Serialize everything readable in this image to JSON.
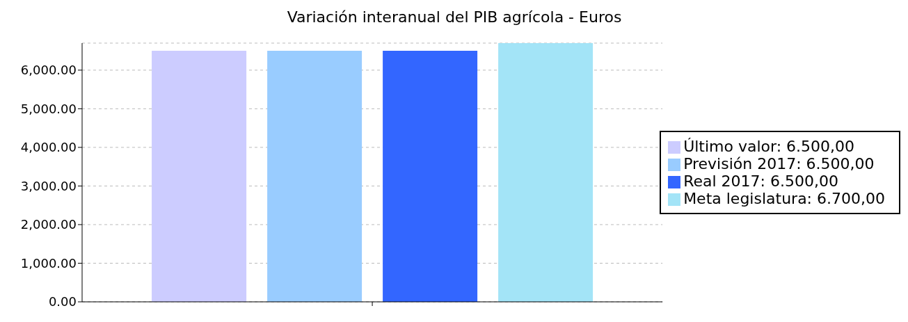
{
  "chart_data": {
    "type": "bar",
    "title": "Variación interanual del PIB agrícola - Euros",
    "categories": [
      null
    ],
    "series": [
      {
        "name": "Último valor: 6.500,00",
        "color": "#ccccff",
        "values": [
          6500
        ]
      },
      {
        "name": "Previsión 2017: 6.500,00",
        "color": "#99ccff",
        "values": [
          6500
        ]
      },
      {
        "name": "Real 2017: 6.500,00",
        "color": "#3366ff",
        "values": [
          6500
        ]
      },
      {
        "name": "Meta legislatura: 6.700,00",
        "color": "#a3e4f7",
        "values": [
          6700
        ]
      }
    ],
    "ylim": [
      0,
      6700
    ],
    "yticks": [
      {
        "value": 0,
        "label": "0.00"
      },
      {
        "value": 1000,
        "label": "1,000.00"
      },
      {
        "value": 2000,
        "label": "2,000.00"
      },
      {
        "value": 3000,
        "label": "3,000.00"
      },
      {
        "value": 4000,
        "label": "4,000.00"
      },
      {
        "value": 5000,
        "label": "5,000.00"
      },
      {
        "value": 6000,
        "label": "6,000.00"
      }
    ],
    "grid": "y",
    "legend": "right"
  }
}
